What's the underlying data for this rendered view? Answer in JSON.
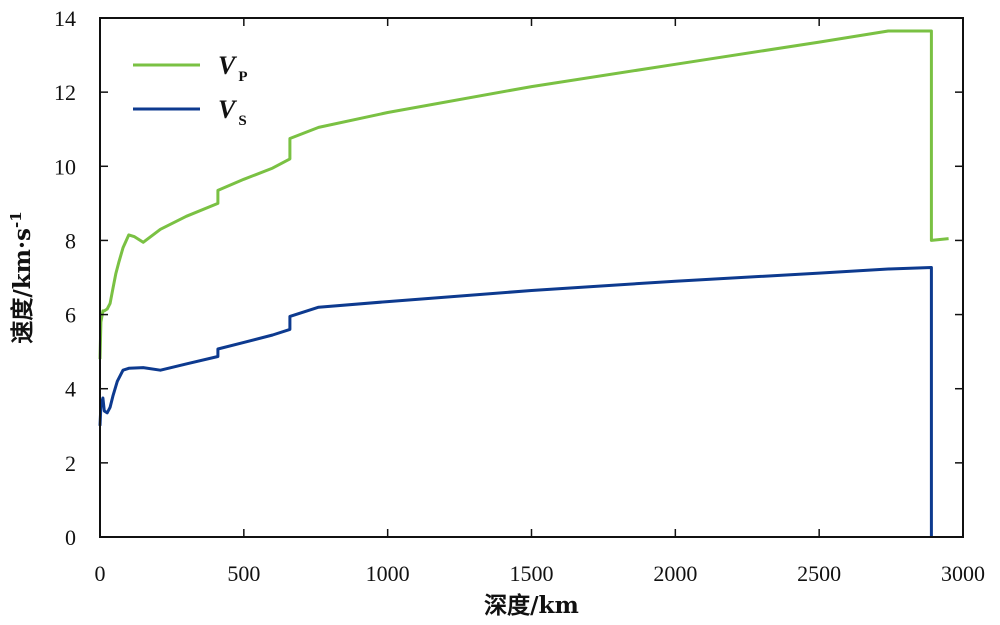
{
  "chart_data": {
    "type": "line",
    "xlabel": "深度/km",
    "ylabel_main": "速度/km·s",
    "ylabel_sup": "-1",
    "xlim": [
      0,
      3000
    ],
    "ylim": [
      0,
      14
    ],
    "xticks": [
      "0",
      "500",
      "1000",
      "1500",
      "2000",
      "2500",
      "3000"
    ],
    "yticks": [
      "0",
      "2",
      "4",
      "6",
      "8",
      "10",
      "12",
      "14"
    ],
    "grid": false,
    "legend_position": "top-left",
    "series": [
      {
        "name": "V",
        "name_sub": "P",
        "color": "#7ac143",
        "x": [
          0,
          3,
          10,
          15,
          25,
          35,
          45,
          55,
          65,
          80,
          100,
          120,
          150,
          210,
          300,
          410,
          410,
          500,
          600,
          660,
          660,
          760,
          1000,
          1500,
          2000,
          2500,
          2740,
          2890,
          2890,
          2950
        ],
        "y": [
          4.8,
          5.8,
          6.1,
          6.1,
          6.15,
          6.3,
          6.7,
          7.1,
          7.4,
          7.8,
          8.15,
          8.1,
          7.95,
          8.3,
          8.65,
          9.0,
          9.35,
          9.65,
          9.95,
          10.2,
          10.75,
          11.05,
          11.45,
          12.15,
          12.75,
          13.35,
          13.65,
          13.65,
          8.0,
          8.05
        ]
      },
      {
        "name": "V",
        "name_sub": "S",
        "color": "#0d3a8f",
        "x": [
          0,
          3,
          10,
          15,
          25,
          35,
          45,
          60,
          80,
          100,
          150,
          210,
          300,
          410,
          410,
          500,
          600,
          660,
          660,
          760,
          1000,
          1500,
          2000,
          2500,
          2740,
          2890,
          2890
        ],
        "y": [
          3.0,
          3.55,
          3.75,
          3.4,
          3.35,
          3.5,
          3.8,
          4.2,
          4.5,
          4.55,
          4.57,
          4.5,
          4.67,
          4.87,
          5.07,
          5.25,
          5.45,
          5.6,
          5.95,
          6.2,
          6.35,
          6.65,
          6.9,
          7.12,
          7.23,
          7.27,
          0
        ]
      }
    ]
  }
}
